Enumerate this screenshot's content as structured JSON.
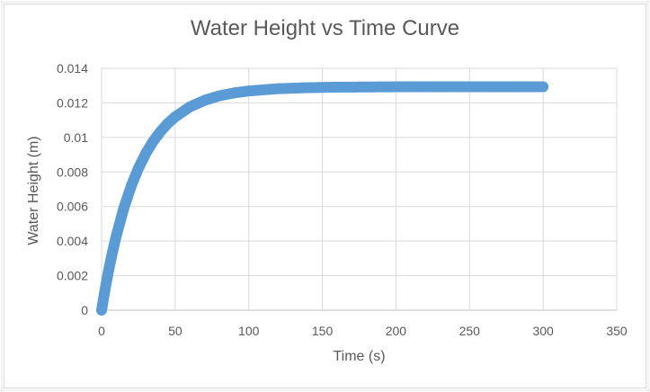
{
  "chart_data": {
    "type": "scatter",
    "title": "Water Height vs Time Curve",
    "xlabel": "Time (s)",
    "ylabel": "Water Height (m)",
    "xlim": [
      0,
      350
    ],
    "ylim": [
      0,
      0.014
    ],
    "x_ticks": [
      "0",
      "50",
      "100",
      "150",
      "200",
      "250",
      "300",
      "350"
    ],
    "y_ticks": [
      "0",
      "0.002",
      "0.004",
      "0.006",
      "0.008",
      "0.01",
      "0.012",
      "0.014"
    ],
    "grid": true,
    "marker_color": "#5b9bd5",
    "series": [
      {
        "x": [
          0,
          1,
          2,
          3,
          5,
          7,
          10,
          15,
          20,
          25,
          30,
          35,
          40,
          45,
          50,
          60,
          70,
          80,
          90,
          100,
          120,
          140,
          160,
          180,
          200,
          220,
          240,
          260,
          280,
          300
        ],
        "y": [
          0,
          0.00052,
          0.00102,
          0.0015,
          0.0024,
          0.00321,
          0.00431,
          0.00588,
          0.00716,
          0.00821,
          0.00907,
          0.00977,
          0.01034,
          0.01081,
          0.01119,
          0.01177,
          0.01215,
          0.01241,
          0.01258,
          0.01269,
          0.01282,
          0.01288,
          0.01291,
          0.01292,
          0.01293,
          0.01293,
          0.01293,
          0.01293,
          0.01293,
          0.01293
        ]
      }
    ]
  }
}
